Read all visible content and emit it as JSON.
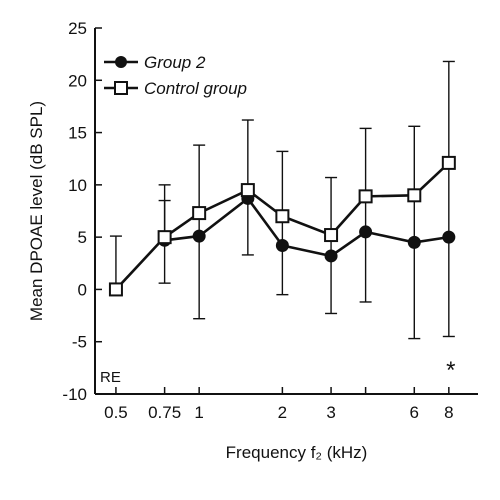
{
  "chart_data": {
    "type": "line",
    "xlabel": "Frequency f₂ (kHz)",
    "ylabel": "Mean DPOAE level (dB SPL)",
    "x_scale": "log",
    "xlim": [
      0.42,
      10.2
    ],
    "ylim": [
      -10,
      25
    ],
    "x_ticks": [
      {
        "value": 0.5,
        "label": "0.5"
      },
      {
        "value": 0.75,
        "label": "0.75"
      },
      {
        "value": 1,
        "label": "1"
      },
      {
        "value": 2,
        "label": "2"
      },
      {
        "value": 3,
        "label": "3"
      },
      {
        "value": 4,
        "label": ""
      },
      {
        "value": 6,
        "label": "6"
      },
      {
        "value": 8,
        "label": "8"
      }
    ],
    "y_ticks": [
      {
        "value": -10,
        "label": "-10"
      },
      {
        "value": -5,
        "label": "-5"
      },
      {
        "value": 0,
        "label": "0"
      },
      {
        "value": 5,
        "label": "5"
      },
      {
        "value": 10,
        "label": "10"
      },
      {
        "value": 15,
        "label": "15"
      },
      {
        "value": 20,
        "label": "20"
      },
      {
        "value": 25,
        "label": "25"
      }
    ],
    "grid": false,
    "legend_position": "top-left",
    "panel_label": "RE",
    "annotation": "*",
    "series": [
      {
        "name": "Group 2",
        "marker": "filled-circle",
        "color": "#111111",
        "x": [
          0.75,
          1,
          1.5,
          2,
          3,
          4,
          6,
          8
        ],
        "y": [
          4.7,
          5.1,
          8.7,
          4.2,
          3.2,
          5.5,
          4.5,
          5.0
        ],
        "err_low": [
          0.6,
          -2.8,
          3.3,
          -0.5,
          -2.3,
          -1.2,
          -4.7,
          -4.5
        ],
        "err_high": [
          8.5,
          13.8,
          16.2,
          13.2,
          10.7,
          15.4,
          15.6,
          21.8
        ]
      },
      {
        "name": "Control group",
        "marker": "open-square",
        "color": "#111111",
        "x": [
          0.5,
          0.75,
          1,
          1.5,
          2,
          3,
          4,
          6,
          8
        ],
        "y": [
          0.0,
          5.0,
          7.3,
          9.5,
          7.0,
          5.2,
          8.9,
          9.0,
          12.1
        ],
        "err_low": [
          null,
          null,
          null,
          null,
          null,
          null,
          null,
          null,
          null
        ],
        "err_high": [
          5.1,
          10.0,
          null,
          null,
          null,
          null,
          null,
          null,
          null
        ]
      }
    ]
  }
}
